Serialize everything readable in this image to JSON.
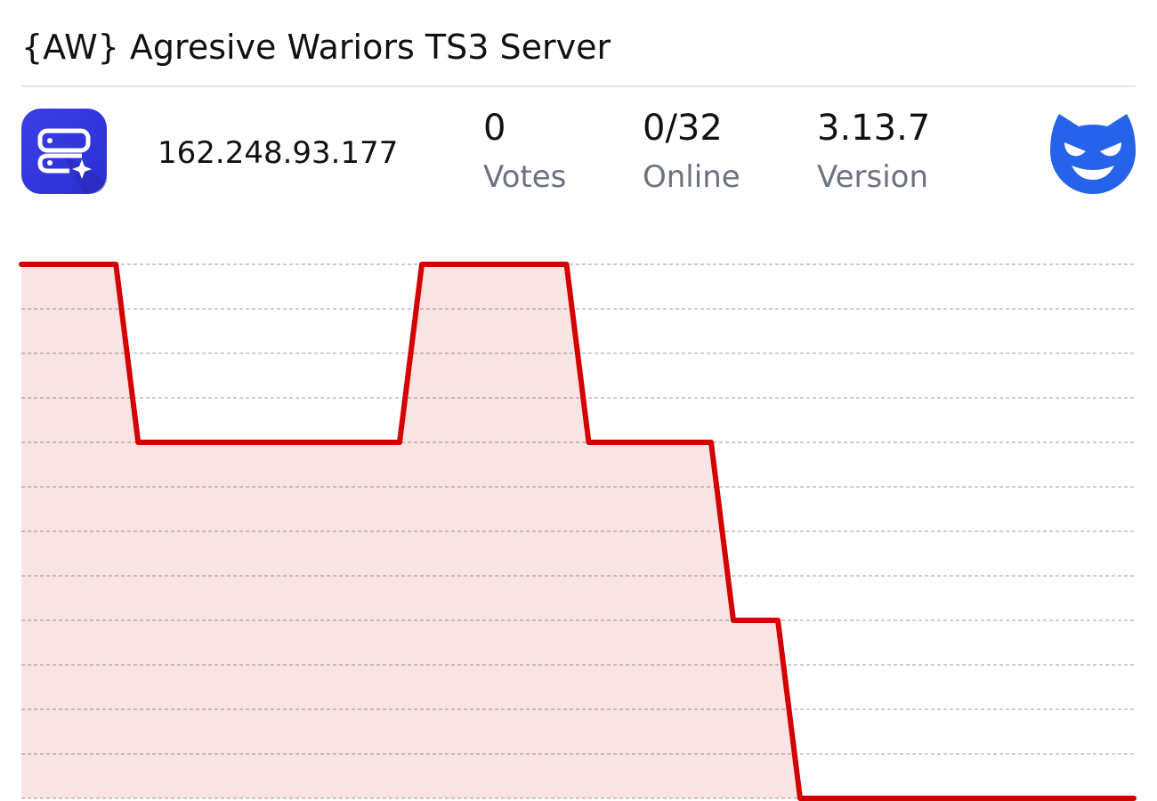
{
  "header": {
    "title": "{AW} Agresive Wariors TS3 Server"
  },
  "server": {
    "ip": "162.248.93.177",
    "stats": [
      {
        "value": "0",
        "label": "Votes"
      },
      {
        "value": "0/32",
        "label": "Online"
      },
      {
        "value": "3.13.7",
        "label": "Version"
      }
    ]
  },
  "chart_data": {
    "type": "area",
    "x": [
      0,
      4.25,
      5.25,
      17,
      18,
      24.5,
      25.5,
      31,
      32,
      34,
      35,
      50
    ],
    "series": [
      {
        "color": "#d40000",
        "values": [
          3,
          3,
          2,
          2,
          3,
          3,
          2,
          2,
          1,
          1,
          0,
          0
        ]
      }
    ],
    "xlim": [
      0,
      50
    ],
    "ylim": [
      0,
      3
    ],
    "yticks": [
      0,
      0.25,
      0.5,
      0.75,
      1,
      1.25,
      1.5,
      1.75,
      2,
      2.25,
      2.5,
      2.75,
      3
    ],
    "grid": true
  }
}
